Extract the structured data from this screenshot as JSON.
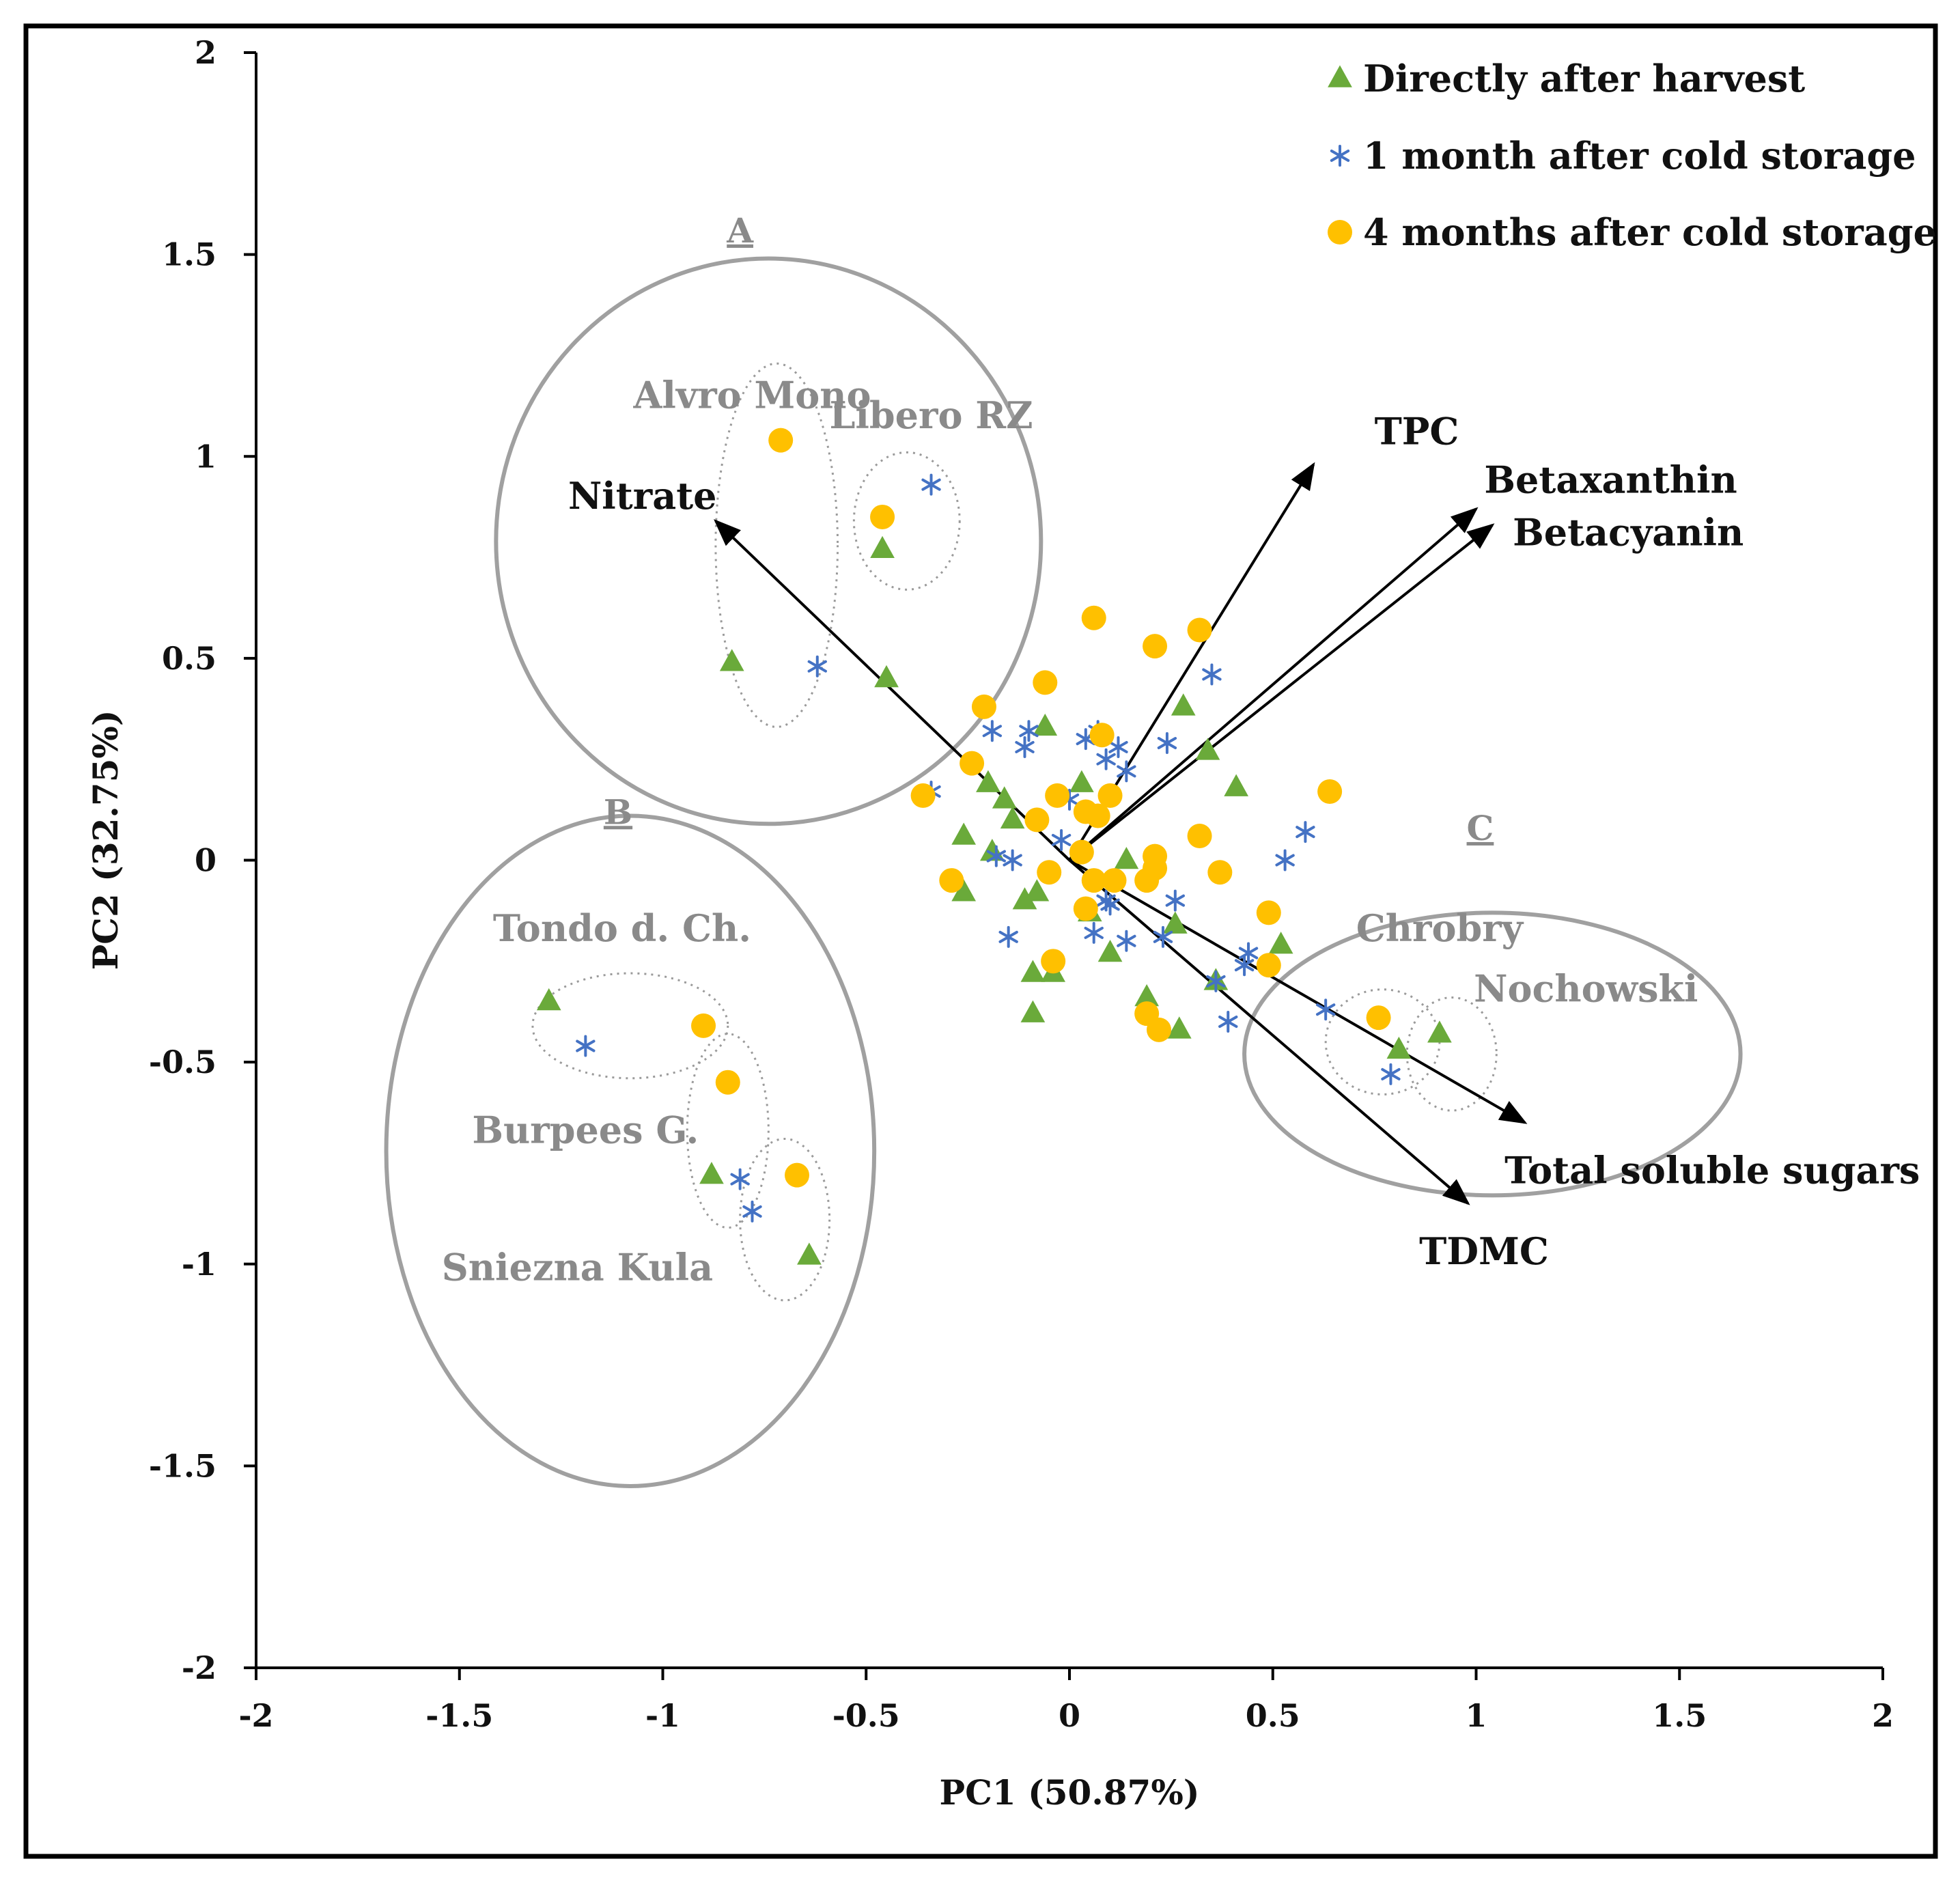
{
  "chart_data": {
    "type": "scatter",
    "title": "",
    "xlabel": "PC1 (50.87%)",
    "ylabel": "PC2 (32.75%)",
    "xlim": [
      -2,
      2
    ],
    "ylim": [
      -2,
      2
    ],
    "xticks": [
      "-2",
      "-1.5",
      "-1",
      "-0.5",
      "0",
      "0.5",
      "1",
      "1.5",
      "2"
    ],
    "yticks": [
      "2",
      "1.5",
      "1",
      "0.5",
      "0",
      "-0.5",
      "-1",
      "-1.5",
      "-2"
    ],
    "legend_position": "top-right",
    "colors": {
      "harvest": "#6aaa3a",
      "month1": "#4472c4",
      "month4": "#ffc000",
      "circle": "#a0a0a0",
      "arrow": "#000000"
    },
    "series": [
      {
        "name": "Directly after harvest",
        "marker": "triangle",
        "points": [
          [
            -0.83,
            0.49
          ],
          [
            -0.46,
            0.77
          ],
          [
            -0.45,
            0.45
          ],
          [
            -1.28,
            -0.35
          ],
          [
            -0.88,
            -0.78
          ],
          [
            -0.64,
            -0.98
          ],
          [
            0.81,
            -0.47
          ],
          [
            0.91,
            -0.43
          ],
          [
            -0.06,
            0.33
          ],
          [
            0.28,
            0.38
          ],
          [
            0.34,
            0.27
          ],
          [
            0.41,
            0.18
          ],
          [
            0.03,
            0.19
          ],
          [
            -0.2,
            0.19
          ],
          [
            -0.16,
            0.15
          ],
          [
            -0.26,
            0.06
          ],
          [
            -0.14,
            0.1
          ],
          [
            -0.19,
            0.02
          ],
          [
            -0.26,
            -0.08
          ],
          [
            -0.11,
            -0.1
          ],
          [
            -0.08,
            -0.08
          ],
          [
            0.14,
            0.0
          ],
          [
            -0.09,
            -0.28
          ],
          [
            -0.04,
            -0.28
          ],
          [
            -0.09,
            -0.38
          ],
          [
            0.1,
            -0.23
          ],
          [
            0.26,
            -0.16
          ],
          [
            0.19,
            -0.34
          ],
          [
            0.27,
            -0.42
          ],
          [
            0.36,
            -0.3
          ],
          [
            0.52,
            -0.21
          ],
          [
            0.05,
            -0.13
          ]
        ]
      },
      {
        "name": "1 month after cold storage",
        "marker": "asterisk",
        "points": [
          [
            -0.34,
            0.93
          ],
          [
            -0.62,
            0.48
          ],
          [
            -1.19,
            -0.46
          ],
          [
            -0.81,
            -0.79
          ],
          [
            -0.78,
            -0.87
          ],
          [
            0.63,
            -0.37
          ],
          [
            0.79,
            -0.53
          ],
          [
            0.35,
            0.46
          ],
          [
            -0.1,
            0.32
          ],
          [
            -0.19,
            0.32
          ],
          [
            -0.11,
            0.28
          ],
          [
            0.04,
            0.3
          ],
          [
            0.09,
            0.25
          ],
          [
            0.12,
            0.28
          ],
          [
            0.14,
            0.22
          ],
          [
            0.24,
            0.29
          ],
          [
            0.07,
            0.32
          ],
          [
            -0.34,
            0.17
          ],
          [
            0.58,
            0.07
          ],
          [
            0.53,
            0.0
          ],
          [
            -0.02,
            0.05
          ],
          [
            -0.18,
            0.01
          ],
          [
            -0.14,
            0.0
          ],
          [
            0.0,
            0.15
          ],
          [
            -0.15,
            -0.19
          ],
          [
            0.06,
            -0.18
          ],
          [
            0.1,
            -0.11
          ],
          [
            0.14,
            -0.2
          ],
          [
            0.23,
            -0.19
          ],
          [
            0.26,
            -0.1
          ],
          [
            0.44,
            -0.23
          ],
          [
            0.43,
            -0.26
          ],
          [
            0.36,
            -0.3
          ],
          [
            0.39,
            -0.4
          ],
          [
            0.09,
            -0.1
          ]
        ]
      },
      {
        "name": "4 months after cold storage",
        "marker": "circle",
        "points": [
          [
            -0.71,
            1.04
          ],
          [
            -0.46,
            0.85
          ],
          [
            -0.9,
            -0.41
          ],
          [
            -0.84,
            -0.55
          ],
          [
            -0.67,
            -0.78
          ],
          [
            0.76,
            -0.39
          ],
          [
            0.06,
            0.6
          ],
          [
            0.21,
            0.53
          ],
          [
            0.32,
            0.57
          ],
          [
            -0.06,
            0.44
          ],
          [
            -0.21,
            0.38
          ],
          [
            0.08,
            0.31
          ],
          [
            -0.24,
            0.24
          ],
          [
            -0.36,
            0.16
          ],
          [
            0.64,
            0.17
          ],
          [
            -0.03,
            0.16
          ],
          [
            0.1,
            0.16
          ],
          [
            0.04,
            0.12
          ],
          [
            0.07,
            0.11
          ],
          [
            -0.08,
            0.1
          ],
          [
            -0.05,
            -0.03
          ],
          [
            0.03,
            0.02
          ],
          [
            0.21,
            0.01
          ],
          [
            0.21,
            -0.02
          ],
          [
            0.32,
            0.06
          ],
          [
            0.37,
            -0.03
          ],
          [
            -0.29,
            -0.05
          ],
          [
            0.06,
            -0.05
          ],
          [
            0.11,
            -0.05
          ],
          [
            0.19,
            -0.05
          ],
          [
            0.04,
            -0.12
          ],
          [
            0.49,
            -0.13
          ],
          [
            -0.04,
            -0.25
          ],
          [
            0.49,
            -0.26
          ],
          [
            0.19,
            -0.38
          ],
          [
            0.22,
            -0.42
          ]
        ]
      }
    ],
    "loadings": [
      {
        "label": "Nitrate",
        "x": -0.87,
        "y": 0.84,
        "label_x": -1.05,
        "label_y": 0.87,
        "anchor": "middle"
      },
      {
        "label": "TPC",
        "x": 0.6,
        "y": 0.98,
        "label_x": 0.75,
        "label_y": 1.03,
        "anchor": "start"
      },
      {
        "label": "Betaxanthin",
        "x": 1.0,
        "y": 0.87,
        "label_x": 1.02,
        "label_y": 0.91,
        "anchor": "start"
      },
      {
        "label": "Betacyanin",
        "x": 1.04,
        "y": 0.83,
        "label_x": 1.09,
        "label_y": 0.78,
        "anchor": "start"
      },
      {
        "label": "Total soluble sugars",
        "x": 1.12,
        "y": -0.65,
        "label_x": 1.07,
        "label_y": -0.8,
        "anchor": "start"
      },
      {
        "label": "TDMC",
        "x": 0.98,
        "y": -0.85,
        "label_x": 0.86,
        "label_y": -1.0,
        "anchor": "start"
      }
    ],
    "groups": [
      {
        "label": "A",
        "cx": -0.74,
        "cy": 0.79,
        "rx": 0.67,
        "ry": 0.7,
        "label_x": -0.81,
        "label_y": 1.53
      },
      {
        "label": "B",
        "cx": -1.08,
        "cy": -0.72,
        "rx": 0.6,
        "ry": 0.83,
        "label_x": -1.11,
        "label_y": 0.09
      },
      {
        "label": "C",
        "cx": 1.04,
        "cy": -0.48,
        "rx": 0.61,
        "ry": 0.35,
        "label_x": 1.01,
        "label_y": 0.05
      }
    ],
    "cultivars": [
      {
        "label": "Alvro Mono",
        "label_x": -0.78,
        "label_y": 1.12,
        "cx": -0.72,
        "cy": 0.78,
        "rx": 0.15,
        "ry": 0.45
      },
      {
        "label": "Libero RZ",
        "label_x": -0.34,
        "label_y": 1.07,
        "cx": -0.4,
        "cy": 0.84,
        "rx": 0.13,
        "ry": 0.17
      },
      {
        "label": "Tondo d. Ch.",
        "label_x": -1.1,
        "label_y": -0.2,
        "cx": -1.08,
        "cy": -0.41,
        "rx": 0.24,
        "ry": 0.13
      },
      {
        "label": "Burpees G.",
        "label_x": -1.19,
        "label_y": -0.7,
        "cx": -0.84,
        "cy": -0.67,
        "rx": 0.1,
        "ry": 0.24
      },
      {
        "label": "Sniezna Kula",
        "label_x": -1.21,
        "label_y": -1.04,
        "cx": -0.7,
        "cy": -0.89,
        "rx": 0.11,
        "ry": 0.2
      },
      {
        "label": "Chrobry",
        "label_x": 0.91,
        "label_y": -0.2,
        "cx": 0.77,
        "cy": -0.45,
        "rx": 0.14,
        "ry": 0.13
      },
      {
        "label": "Nochowski",
        "label_x": 1.27,
        "label_y": -0.35,
        "cx": 0.94,
        "cy": -0.48,
        "rx": 0.11,
        "ry": 0.14
      }
    ]
  }
}
